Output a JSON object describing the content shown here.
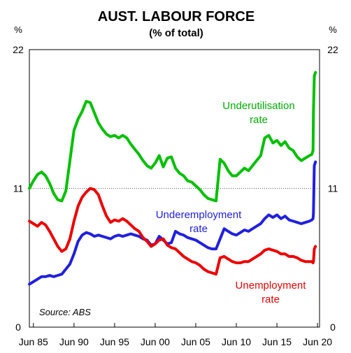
{
  "chart_data": {
    "type": "line",
    "title": "AUST. LABOUR FORCE",
    "subtitle": "(% of total)",
    "y_unit_left": "%",
    "y_unit_right": "%",
    "ylim": [
      0,
      22
    ],
    "y_ticks": [
      "0",
      "11",
      "22"
    ],
    "y_tick_values": [
      0,
      11,
      22
    ],
    "xlim": [
      1985.0,
      2020.75
    ],
    "x_tick_labels": [
      "Jun 85",
      "Jun 90",
      "Jun 95",
      "Jun 00",
      "Jun 05",
      "Jun 10",
      "Jun 15",
      "Jun 20"
    ],
    "x_tick_values": [
      1985.5,
      1990.5,
      1995.5,
      2000.5,
      2005.5,
      2010.5,
      2015.5,
      2020.5
    ],
    "reference_line": 11,
    "source": "Source: ABS",
    "series": [
      {
        "name": "Underutilisation rate",
        "label_lines": [
          "Underutilisation",
          "rate"
        ],
        "color": "#00c000",
        "x": [
          1985.0,
          1985.5,
          1986.0,
          1986.5,
          1987.0,
          1987.5,
          1988.0,
          1988.5,
          1989.0,
          1989.5,
          1990.0,
          1990.5,
          1991.0,
          1991.5,
          1992.0,
          1992.5,
          1993.0,
          1993.5,
          1994.0,
          1994.5,
          1995.0,
          1995.5,
          1996.0,
          1996.5,
          1997.0,
          1997.5,
          1998.0,
          1998.5,
          1999.0,
          1999.5,
          2000.0,
          2000.5,
          2001.0,
          2001.5,
          2002.0,
          2002.5,
          2003.0,
          2003.5,
          2004.0,
          2004.5,
          2005.0,
          2005.5,
          2006.0,
          2006.5,
          2007.0,
          2007.5,
          2008.0,
          2008.5,
          2009.0,
          2009.5,
          2010.0,
          2010.5,
          2011.0,
          2011.5,
          2012.0,
          2012.5,
          2013.0,
          2013.5,
          2014.0,
          2014.5,
          2015.0,
          2015.5,
          2016.0,
          2016.5,
          2017.0,
          2017.5,
          2018.0,
          2018.5,
          2019.0,
          2019.5,
          2019.8,
          2019.95,
          2020.0,
          2020.1,
          2020.25
        ],
        "values": [
          11.0,
          11.6,
          12.1,
          12.3,
          12.0,
          11.4,
          10.6,
          10.1,
          10.0,
          10.8,
          13.2,
          15.6,
          16.5,
          17.1,
          17.9,
          17.8,
          17.0,
          16.2,
          15.7,
          15.3,
          15.1,
          15.2,
          15.0,
          15.2,
          15.0,
          14.5,
          14.1,
          13.7,
          13.2,
          12.8,
          12.6,
          13.0,
          13.6,
          12.7,
          13.4,
          13.5,
          12.6,
          12.2,
          12.0,
          11.6,
          11.5,
          11.2,
          10.9,
          10.5,
          10.2,
          10.1,
          10.0,
          13.3,
          13.0,
          12.4,
          12.0,
          12.0,
          12.3,
          12.6,
          12.4,
          12.8,
          13.2,
          13.6,
          15.0,
          15.2,
          14.6,
          14.8,
          14.4,
          14.7,
          14.2,
          14.0,
          13.5,
          13.2,
          13.4,
          13.6,
          13.7,
          14.0,
          17.0,
          19.9,
          20.2
        ]
      },
      {
        "name": "Underemployment rate",
        "label_lines": [
          "Underemployment",
          "rate"
        ],
        "color": "#2020e0",
        "x": [
          1985.0,
          1985.5,
          1986.0,
          1986.5,
          1987.0,
          1987.5,
          1988.0,
          1988.5,
          1989.0,
          1989.5,
          1990.0,
          1990.5,
          1991.0,
          1991.5,
          1992.0,
          1992.5,
          1993.0,
          1993.5,
          1994.0,
          1994.5,
          1995.0,
          1995.5,
          1996.0,
          1996.5,
          1997.0,
          1997.5,
          1998.0,
          1998.5,
          1999.0,
          1999.5,
          2000.0,
          2000.5,
          2001.0,
          2001.5,
          2002.0,
          2002.5,
          2003.0,
          2003.5,
          2004.0,
          2004.5,
          2005.0,
          2005.5,
          2006.0,
          2006.5,
          2007.0,
          2007.5,
          2008.0,
          2008.5,
          2009.0,
          2009.5,
          2010.0,
          2010.5,
          2011.0,
          2011.5,
          2012.0,
          2012.5,
          2013.0,
          2013.5,
          2014.0,
          2014.5,
          2015.0,
          2015.5,
          2016.0,
          2016.5,
          2017.0,
          2017.5,
          2018.0,
          2018.5,
          2019.0,
          2019.5,
          2019.8,
          2019.95,
          2020.0,
          2020.1,
          2020.25
        ],
        "values": [
          3.4,
          3.6,
          3.8,
          4.0,
          4.0,
          4.1,
          4.0,
          4.1,
          4.2,
          4.6,
          5.0,
          5.8,
          6.8,
          7.3,
          7.5,
          7.4,
          7.2,
          7.3,
          7.2,
          7.1,
          7.0,
          7.2,
          7.3,
          7.2,
          7.3,
          7.4,
          7.3,
          7.2,
          7.0,
          6.9,
          6.5,
          6.6,
          7.2,
          6.9,
          6.6,
          6.7,
          7.6,
          7.4,
          7.3,
          7.1,
          7.0,
          6.9,
          6.7,
          6.5,
          6.3,
          6.2,
          6.2,
          7.0,
          7.8,
          7.6,
          7.4,
          7.3,
          7.5,
          7.7,
          7.6,
          7.8,
          8.0,
          8.2,
          8.6,
          8.9,
          8.7,
          8.9,
          8.6,
          8.8,
          8.5,
          8.4,
          8.3,
          8.2,
          8.3,
          8.4,
          8.5,
          8.6,
          9.0,
          12.8,
          13.1
        ]
      },
      {
        "name": "Unemployment rate",
        "label_lines": [
          "Unemployment",
          "rate"
        ],
        "color": "#ee0000",
        "x": [
          1985.0,
          1985.5,
          1986.0,
          1986.5,
          1987.0,
          1987.5,
          1988.0,
          1988.5,
          1989.0,
          1989.5,
          1990.0,
          1990.5,
          1991.0,
          1991.5,
          1992.0,
          1992.5,
          1993.0,
          1993.5,
          1994.0,
          1994.5,
          1995.0,
          1995.5,
          1996.0,
          1996.5,
          1997.0,
          1997.5,
          1998.0,
          1998.5,
          1999.0,
          1999.5,
          2000.0,
          2000.5,
          2001.0,
          2001.5,
          2002.0,
          2002.5,
          2003.0,
          2003.5,
          2004.0,
          2004.5,
          2005.0,
          2005.5,
          2006.0,
          2006.5,
          2007.0,
          2007.5,
          2008.0,
          2008.5,
          2009.0,
          2009.5,
          2010.0,
          2010.5,
          2011.0,
          2011.5,
          2012.0,
          2012.5,
          2013.0,
          2013.5,
          2014.0,
          2014.5,
          2015.0,
          2015.5,
          2016.0,
          2016.5,
          2017.0,
          2017.5,
          2018.0,
          2018.5,
          2019.0,
          2019.5,
          2019.8,
          2019.95,
          2020.0,
          2020.1,
          2020.25
        ],
        "values": [
          8.4,
          8.2,
          8.0,
          8.3,
          8.1,
          7.6,
          7.0,
          6.4,
          6.0,
          6.2,
          7.0,
          8.4,
          9.6,
          10.3,
          10.7,
          11.0,
          10.9,
          10.5,
          9.6,
          8.8,
          8.3,
          8.5,
          8.4,
          8.6,
          8.4,
          8.1,
          7.8,
          7.6,
          7.1,
          6.8,
          6.4,
          6.6,
          6.9,
          7.0,
          6.5,
          6.3,
          6.2,
          5.9,
          5.6,
          5.4,
          5.2,
          5.1,
          4.9,
          4.6,
          4.4,
          4.3,
          4.2,
          5.5,
          5.6,
          5.4,
          5.2,
          5.1,
          5.1,
          5.2,
          5.2,
          5.4,
          5.6,
          5.8,
          6.1,
          6.2,
          6.1,
          6.0,
          5.8,
          5.8,
          5.6,
          5.6,
          5.5,
          5.3,
          5.2,
          5.2,
          5.2,
          5.1,
          5.2,
          6.2,
          6.4
        ]
      }
    ]
  }
}
